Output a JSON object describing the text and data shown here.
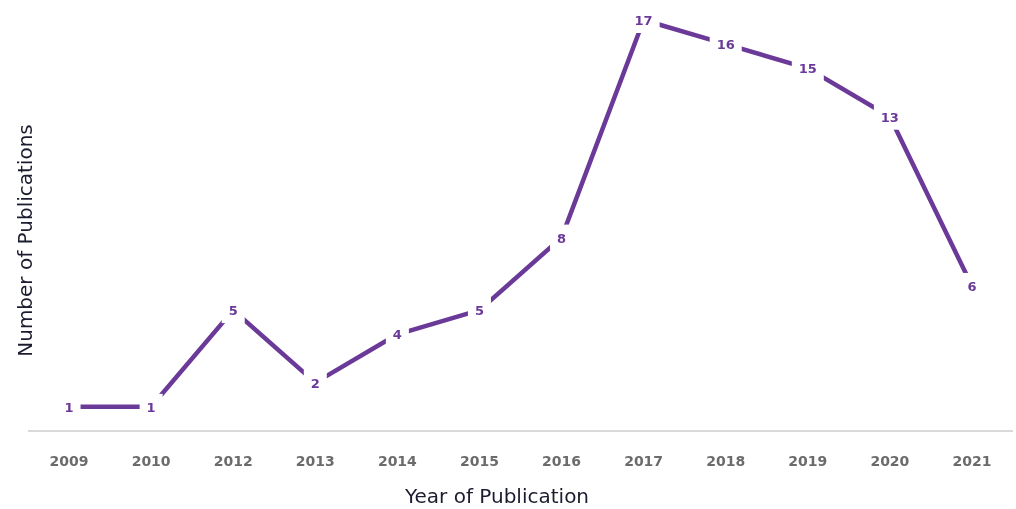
{
  "chart_data": {
    "type": "line",
    "xlabel": "Year of Publication",
    "ylabel": "Number of Publications",
    "categories": [
      "2009",
      "2010",
      "2012",
      "2013",
      "2014",
      "2015",
      "2016",
      "2017",
      "2018",
      "2019",
      "2020",
      "2021"
    ],
    "series": [
      {
        "color": "#6b3a99",
        "values": [
          1,
          1,
          5,
          2,
          4,
          5,
          8,
          17,
          16,
          15,
          13,
          6
        ]
      }
    ],
    "tick_labels": "x",
    "data_labels": true
  }
}
